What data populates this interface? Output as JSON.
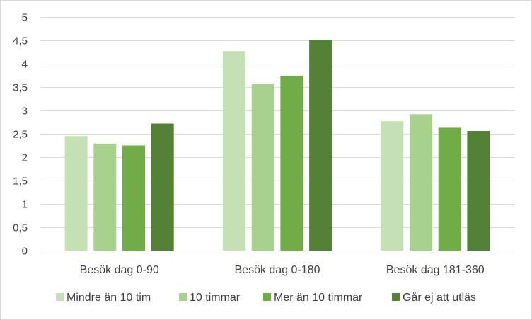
{
  "chart_data": {
    "type": "bar",
    "title": "",
    "xlabel": "",
    "ylabel": "",
    "ylim": [
      0,
      5
    ],
    "ytick_step": 0.5,
    "ytick_labels": [
      "0",
      "0,5",
      "1",
      "1,5",
      "2",
      "2,5",
      "3",
      "3,5",
      "4",
      "4,5",
      "5"
    ],
    "grid": true,
    "legend_position": "bottom",
    "categories": [
      "Besök dag 0-90",
      "Besök dag 0-180",
      "Besök dag 181-360"
    ],
    "series": [
      {
        "name": "Mindre än 10 tim",
        "color": "#c5e0b4",
        "values": [
          2.45,
          4.27,
          2.77
        ]
      },
      {
        "name": "10 timmar",
        "color": "#a9d18e",
        "values": [
          2.29,
          3.56,
          2.92
        ]
      },
      {
        "name": "Mer än 10 timmar",
        "color": "#70ad47",
        "values": [
          2.25,
          3.74,
          2.63
        ]
      },
      {
        "name": "Går ej att utläs",
        "color": "#538135",
        "values": [
          2.72,
          4.51,
          2.56
        ]
      }
    ]
  }
}
